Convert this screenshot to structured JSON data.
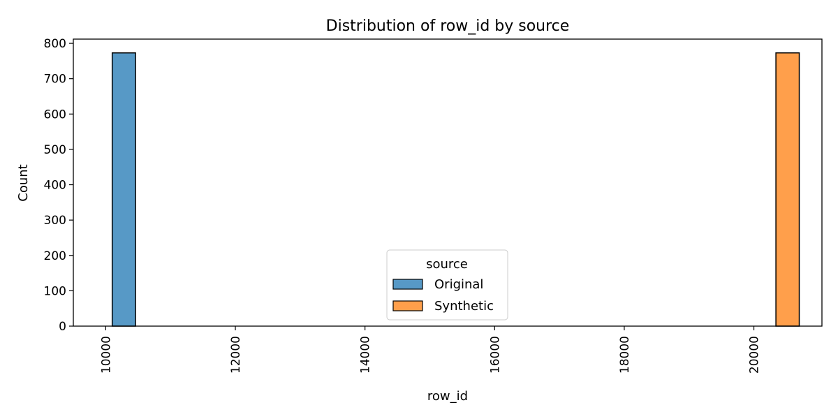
{
  "chart_data": {
    "type": "bar",
    "title": "Distribution of row_id by source",
    "xlabel": "row_id",
    "ylabel": "Count",
    "xlim": [
      9500,
      21050
    ],
    "ylim": [
      0,
      812
    ],
    "xticks": [
      10000,
      12000,
      14000,
      16000,
      18000,
      20000
    ],
    "yticks": [
      0,
      100,
      200,
      300,
      400,
      500,
      600,
      700,
      800
    ],
    "grid": false,
    "legend": {
      "title": "source",
      "placement": "bottom-center"
    },
    "series": [
      {
        "name": "Original",
        "color": "#5799C6",
        "bins": [
          {
            "x0": 10100,
            "x1": 10460,
            "count": 773
          }
        ]
      },
      {
        "name": "Synthetic",
        "color": "#FF9F4B",
        "bins": [
          {
            "x0": 20340,
            "x1": 20700,
            "count": 773
          }
        ]
      }
    ]
  }
}
